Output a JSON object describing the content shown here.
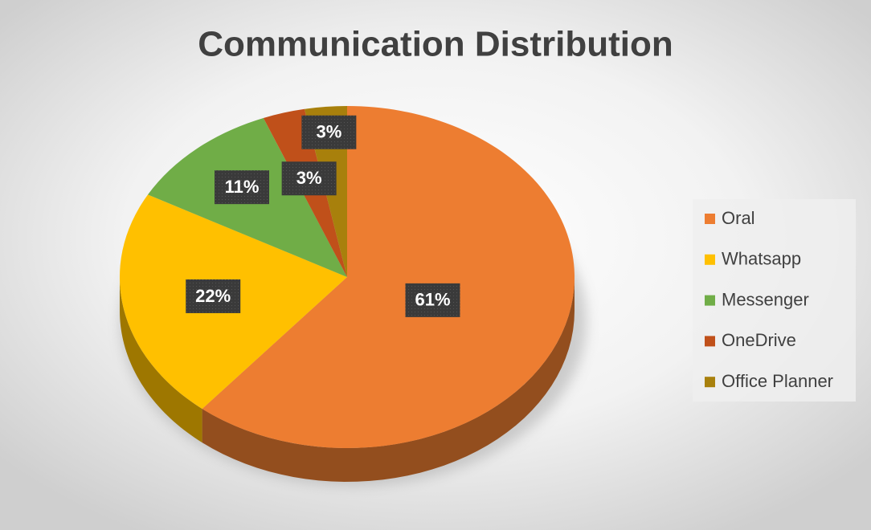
{
  "chart_data": {
    "type": "pie",
    "title": "Communication Distribution",
    "categories": [
      "Oral",
      "Whatsapp",
      "Messenger",
      "OneDrive",
      "Office Planner"
    ],
    "values": [
      61,
      22,
      11,
      3,
      3
    ],
    "value_labels": [
      "61%",
      "22%",
      "11%",
      "3%",
      "3%"
    ],
    "colors": [
      "#ED7D31",
      "#FFC000",
      "#70AD47",
      "#C0501A",
      "#A8800C"
    ],
    "legend": "right"
  }
}
